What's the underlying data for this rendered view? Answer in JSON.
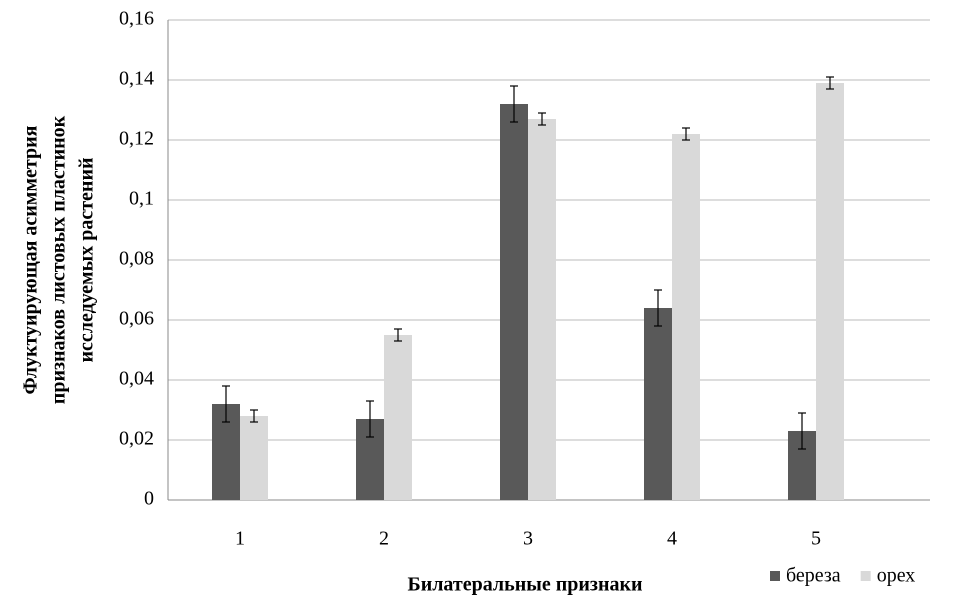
{
  "chart_data": {
    "type": "bar",
    "ylabel": [
      "Флуктуирующая асимметрия",
      "признаков листовых пластинок",
      "исследуемых растений"
    ],
    "xlabel": "Билатеральные признаки",
    "categories": [
      "1",
      "2",
      "3",
      "4",
      "5"
    ],
    "series": [
      {
        "name": "береза",
        "color": "#595959",
        "values": [
          0.032,
          0.027,
          0.132,
          0.064,
          0.023
        ],
        "errors": [
          0.006,
          0.006,
          0.006,
          0.006,
          0.006
        ]
      },
      {
        "name": "орех",
        "color": "#d9d9d9",
        "values": [
          0.028,
          0.055,
          0.127,
          0.122,
          0.139
        ],
        "errors": [
          0.002,
          0.002,
          0.002,
          0.002,
          0.002
        ]
      }
    ],
    "ylim": [
      0,
      0.16
    ],
    "yticks": [
      0,
      {
        "value": 0.02,
        "label": "0,02"
      },
      {
        "value": 0.04,
        "label": "0,04"
      },
      {
        "value": 0.06,
        "label": "0,06"
      },
      {
        "value": 0.08,
        "label": "0,08"
      },
      {
        "value": 0.1,
        "label": "0,1"
      },
      {
        "value": 0.12,
        "label": "0,12"
      },
      {
        "value": 0.14,
        "label": "0,14"
      },
      {
        "value": 0.16,
        "label": "0,16"
      }
    ],
    "grid": true,
    "legend": "bottom-right"
  }
}
